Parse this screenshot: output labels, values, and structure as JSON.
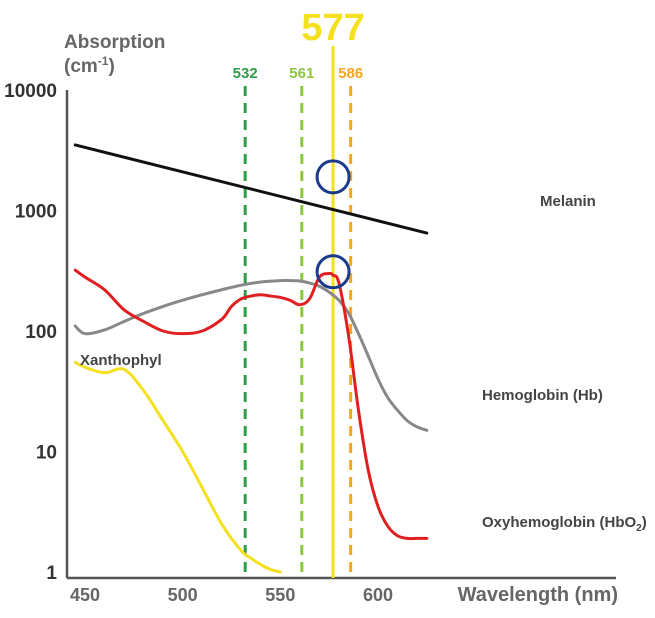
{
  "chart_data": {
    "type": "line",
    "ylabel_line1": "Absorption",
    "ylabel_line2": "(cm",
    "ylabel_sup": "-1",
    "ylabel_close": ")",
    "xlabel": "Wavelength (nm)",
    "xlim": [
      445,
      625
    ],
    "ylim": [
      1,
      10000
    ],
    "yscale": "log",
    "x_ticks": [
      450,
      500,
      550,
      600
    ],
    "y_ticks": [
      {
        "value": 1,
        "label": "1"
      },
      {
        "value": 10,
        "label": "10"
      },
      {
        "value": 100,
        "label": "100"
      },
      {
        "value": 1000,
        "label": "1000"
      },
      {
        "value": 10000,
        "label": "10000"
      }
    ],
    "series": [
      {
        "name": "Melanin",
        "color": "#111111",
        "x": [
          445,
          625
        ],
        "y": [
          3500,
          650
        ]
      },
      {
        "name": "Hemoglobin (Hb)",
        "color": "#888888",
        "x": [
          445,
          450,
          460,
          470,
          480,
          490,
          500,
          510,
          520,
          530,
          540,
          550,
          555,
          560,
          565,
          570,
          575,
          580,
          585,
          590,
          595,
          600,
          605,
          610,
          615,
          620,
          625
        ],
        "y": [
          110,
          95,
          102,
          120,
          140,
          160,
          180,
          200,
          220,
          240,
          255,
          262,
          262,
          260,
          250,
          235,
          210,
          180,
          140,
          95,
          62,
          40,
          28,
          22,
          18,
          16,
          15
        ]
      },
      {
        "name": "Oxyhemoglobin (HbO",
        "name_sub": "2",
        "name_close": ")",
        "color": "#e02020",
        "x": [
          445,
          450,
          460,
          470,
          480,
          490,
          500,
          510,
          520,
          525,
          530,
          535,
          540,
          545,
          550,
          555,
          560,
          565,
          570,
          575,
          577,
          580,
          585,
          590,
          595,
          600,
          605,
          610,
          615,
          620,
          625
        ],
        "y": [
          320,
          280,
          220,
          150,
          120,
          100,
          95,
          100,
          125,
          160,
          185,
          195,
          200,
          195,
          190,
          180,
          165,
          185,
          280,
          300,
          290,
          250,
          90,
          22,
          7,
          3.5,
          2.4,
          2.0,
          1.9,
          1.9,
          1.9
        ]
      },
      {
        "name": "Xanthophyl",
        "color": "#f5e020",
        "x": [
          445,
          450,
          460,
          470,
          480,
          490,
          500,
          510,
          520,
          530,
          535,
          540,
          545,
          550
        ],
        "y": [
          55,
          50,
          45,
          48,
          32,
          18,
          10,
          5,
          2.5,
          1.5,
          1.3,
          1.15,
          1.05,
          1.0
        ]
      }
    ],
    "lasers": [
      {
        "wavelength": 532,
        "label": "532",
        "color": "#2e9e4a",
        "style": "dashed"
      },
      {
        "wavelength": 561,
        "label": "561",
        "color": "#8cc63f",
        "style": "dashed"
      },
      {
        "wavelength": 577,
        "label": "577",
        "color": "#f5e020",
        "style": "solid"
      },
      {
        "wavelength": 586,
        "label": "586",
        "color": "#f5a623",
        "style": "dashed"
      }
    ],
    "highlight_color": "#1a3a8c",
    "highlights": [
      {
        "x": 577,
        "y": 1900
      },
      {
        "x": 577,
        "y": 310
      }
    ],
    "grid": false,
    "legend": "inline-labels"
  }
}
